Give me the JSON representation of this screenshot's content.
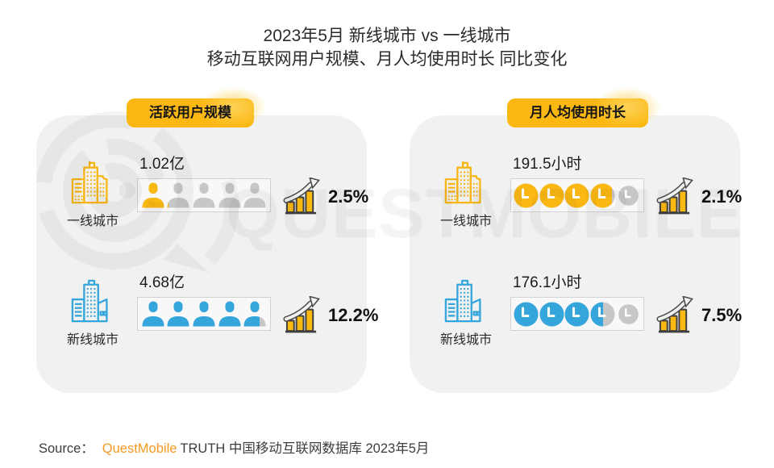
{
  "title": {
    "line1": "2023年5月 新线城市 vs 一线城市",
    "line2": "移动互联网用户规模、月人均使用时长 同比变化"
  },
  "watermark": {
    "text": "QUESTMOBILE"
  },
  "colors": {
    "gold": "#FBB813",
    "blue": "#35A6DB",
    "gray_unit": "#C7C7C7",
    "panel_bg": "#F1F1F1",
    "brand_orange": "#F59A23"
  },
  "panels": [
    {
      "badge": "活跃用户规模",
      "rows": [
        {
          "city": "一线城市",
          "tier": "first-tier",
          "value": "1.02亿",
          "icon_kind": "person",
          "fractions": [
            1,
            0.08,
            0,
            0,
            0
          ],
          "color": "#FBB813",
          "growth": "2.5%"
        },
        {
          "city": "新线城市",
          "tier": "new-line",
          "value": "4.68亿",
          "icon_kind": "person",
          "fractions": [
            1,
            1,
            1,
            1,
            0.68
          ],
          "color": "#35A6DB",
          "growth": "12.2%"
        }
      ]
    },
    {
      "badge": "月人均使用时长",
      "rows": [
        {
          "city": "一线城市",
          "tier": "first-tier",
          "value": "191.5小时",
          "icon_kind": "clock",
          "fractions": [
            1,
            1,
            1,
            0.85,
            0
          ],
          "color": "#FBB813",
          "growth": "2.1%"
        },
        {
          "city": "新线城市",
          "tier": "new-line",
          "value": "176.1小时",
          "icon_kind": "clock",
          "fractions": [
            1,
            1,
            1,
            0.5,
            0
          ],
          "color": "#35A6DB",
          "growth": "7.5%"
        }
      ]
    }
  ],
  "source": {
    "prefix": "Source：",
    "brand": "QuestMobile",
    "suffix": "TRUTH 中国移动互联网数据库 2023年5月"
  },
  "chart_data": {
    "type": "table",
    "title": "2023年5月 新线城市 vs 一线城市 移动互联网用户规模、月人均使用时长 同比变化",
    "metrics": [
      {
        "name": "活跃用户规模",
        "unit": "亿",
        "rows": [
          {
            "city": "一线城市",
            "value": 1.02,
            "yoy_change_pct": 2.5
          },
          {
            "city": "新线城市",
            "value": 4.68,
            "yoy_change_pct": 12.2
          }
        ]
      },
      {
        "name": "月人均使用时长",
        "unit": "小时",
        "rows": [
          {
            "city": "一线城市",
            "value": 191.5,
            "yoy_change_pct": 2.1
          },
          {
            "city": "新线城市",
            "value": 176.1,
            "yoy_change_pct": 7.5
          }
        ]
      }
    ],
    "source": "QuestMobile TRUTH 中国移动互联网数据库 2023年5月"
  }
}
